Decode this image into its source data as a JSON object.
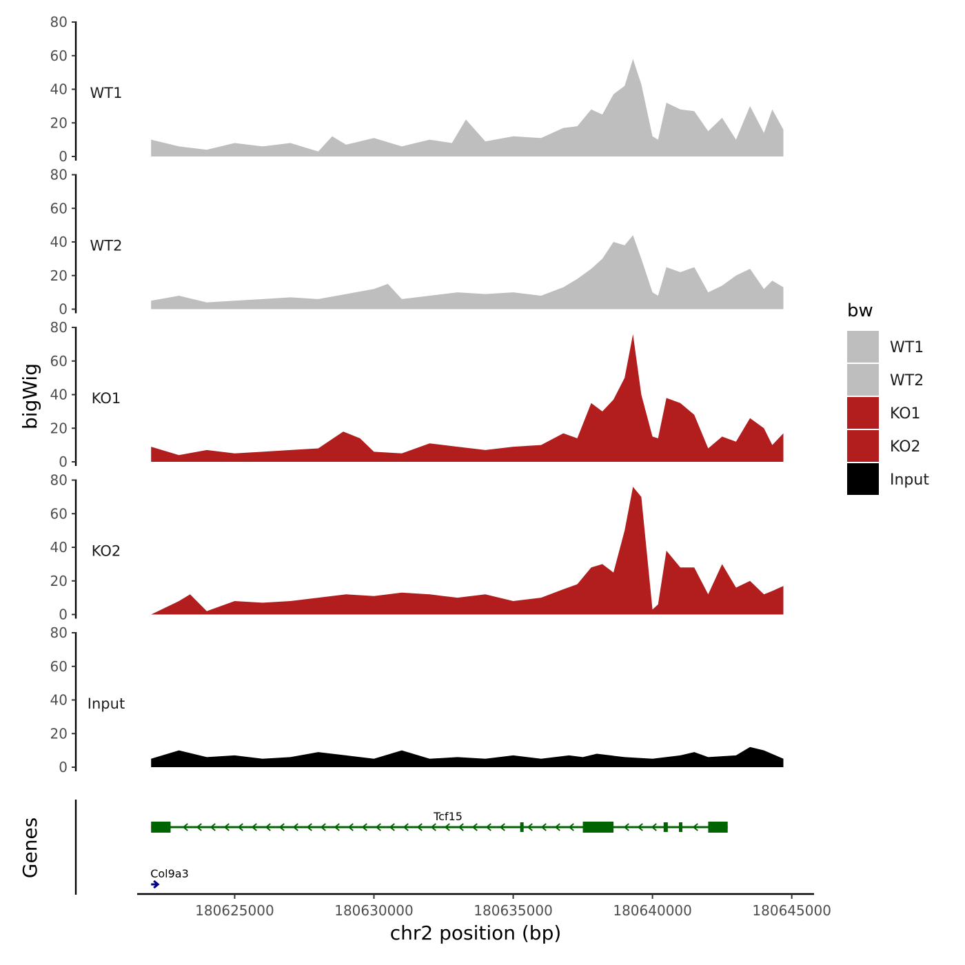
{
  "chart_data": {
    "type": "area",
    "title": "",
    "xlabel": "chr2 position (bp)",
    "ylabel": "bigWig",
    "genes_track_label": "Genes",
    "xlim": [
      180621500,
      180645800
    ],
    "ylim": [
      0,
      80
    ],
    "yticks": [
      0,
      20,
      40,
      60,
      80
    ],
    "xticks": [
      180625000,
      180630000,
      180635000,
      180640000,
      180645000
    ],
    "xtick_labels": [
      "180625000",
      "180630000",
      "180635000",
      "180640000",
      "180645000"
    ],
    "legend": {
      "title": "bw",
      "placement": "right",
      "entries": [
        {
          "label": "WT1",
          "color": "#bebebe"
        },
        {
          "label": "WT2",
          "color": "#bebebe"
        },
        {
          "label": "KO1",
          "color": "#b21e1e"
        },
        {
          "label": "KO2",
          "color": "#b21e1e"
        },
        {
          "label": "Input",
          "color": "#000000"
        }
      ]
    },
    "series": [
      {
        "name": "WT1",
        "color": "#bebebe",
        "x": [
          180622000,
          180623000,
          180624000,
          180625000,
          180626000,
          180627000,
          180628000,
          180628500,
          180629000,
          180630000,
          180631000,
          180632000,
          180632800,
          180633300,
          180634000,
          180635000,
          180636000,
          180636800,
          180637300,
          180637800,
          180638200,
          180638600,
          180639000,
          180639300,
          180639600,
          180640000,
          180640200,
          180640500,
          180641000,
          180641500,
          180642000,
          180642500,
          180643000,
          180643500,
          180644000,
          180644300,
          180644700
        ],
        "values": [
          10,
          6,
          4,
          8,
          6,
          8,
          3,
          12,
          7,
          11,
          6,
          10,
          8,
          22,
          9,
          12,
          11,
          17,
          18,
          28,
          25,
          37,
          42,
          58,
          43,
          12,
          10,
          32,
          28,
          27,
          15,
          23,
          10,
          30,
          14,
          28,
          16
        ]
      },
      {
        "name": "WT2",
        "color": "#bebebe",
        "x": [
          180622000,
          180623000,
          180624000,
          180625000,
          180626000,
          180627000,
          180628000,
          180629000,
          180630000,
          180630500,
          180631000,
          180632000,
          180633000,
          180634000,
          180635000,
          180636000,
          180636800,
          180637300,
          180637800,
          180638200,
          180638600,
          180639000,
          180639300,
          180639600,
          180640000,
          180640200,
          180640500,
          180641000,
          180641500,
          180642000,
          180642500,
          180643000,
          180643500,
          180644000,
          180644300,
          180644700
        ],
        "values": [
          5,
          8,
          4,
          5,
          6,
          7,
          6,
          9,
          12,
          15,
          6,
          8,
          10,
          9,
          10,
          8,
          13,
          18,
          24,
          30,
          40,
          38,
          44,
          30,
          10,
          8,
          25,
          22,
          25,
          10,
          14,
          20,
          24,
          12,
          17,
          13
        ]
      },
      {
        "name": "KO1",
        "color": "#b21e1e",
        "x": [
          180622000,
          180623000,
          180624000,
          180625000,
          180626000,
          180627000,
          180628000,
          180628900,
          180629500,
          180630000,
          180631000,
          180632000,
          180633000,
          180634000,
          180635000,
          180636000,
          180636800,
          180637300,
          180637800,
          180638200,
          180638600,
          180639000,
          180639300,
          180639600,
          180640000,
          180640200,
          180640500,
          180641000,
          180641500,
          180642000,
          180642500,
          180643000,
          180643500,
          180644000,
          180644300,
          180644700
        ],
        "values": [
          9,
          4,
          7,
          5,
          6,
          7,
          8,
          18,
          14,
          6,
          5,
          11,
          9,
          7,
          9,
          10,
          17,
          14,
          35,
          30,
          37,
          50,
          76,
          40,
          15,
          14,
          38,
          35,
          28,
          8,
          15,
          12,
          26,
          20,
          10,
          17
        ]
      },
      {
        "name": "KO2",
        "color": "#b21e1e",
        "x": [
          180622000,
          180623000,
          180623400,
          180624000,
          180625000,
          180626000,
          180627000,
          180628000,
          180629000,
          180630000,
          180631000,
          180632000,
          180633000,
          180634000,
          180635000,
          180636000,
          180636800,
          180637300,
          180637800,
          180638200,
          180638600,
          180639000,
          180639300,
          180639600,
          180640000,
          180640200,
          180640500,
          180641000,
          180641500,
          180642000,
          180642500,
          180643000,
          180643500,
          180644000,
          180644300,
          180644700
        ],
        "values": [
          0,
          8,
          12,
          2,
          8,
          7,
          8,
          10,
          12,
          11,
          13,
          12,
          10,
          12,
          8,
          10,
          15,
          18,
          28,
          30,
          25,
          50,
          76,
          70,
          3,
          6,
          38,
          28,
          28,
          12,
          30,
          16,
          20,
          12,
          14,
          17
        ]
      },
      {
        "name": "Input",
        "color": "#000000",
        "x": [
          180622000,
          180623000,
          180624000,
          180625000,
          180626000,
          180627000,
          180628000,
          180629000,
          180630000,
          180631000,
          180632000,
          180633000,
          180634000,
          180635000,
          180636000,
          180637000,
          180637500,
          180638000,
          180639000,
          180640000,
          180641000,
          180641500,
          180642000,
          180643000,
          180643500,
          180644000,
          180644700
        ],
        "values": [
          5,
          10,
          6,
          7,
          5,
          6,
          9,
          7,
          5,
          10,
          5,
          6,
          5,
          7,
          5,
          7,
          6,
          8,
          6,
          5,
          7,
          9,
          6,
          7,
          12,
          10,
          5
        ]
      }
    ],
    "genes": [
      {
        "name": "Tcf15",
        "strand": "-",
        "color": "#006400",
        "start": 180622000,
        "end": 180642700,
        "exons": [
          [
            180622000,
            180622700
          ],
          [
            180635250,
            180635350
          ],
          [
            180637500,
            180638600
          ],
          [
            180640400,
            180640550
          ],
          [
            180640950,
            180641050
          ],
          [
            180642000,
            180642700
          ]
        ]
      },
      {
        "name": "Col9a3",
        "strand": "+",
        "color": "#00008b",
        "start": 180622000,
        "end": 180622200,
        "exons": []
      }
    ]
  }
}
